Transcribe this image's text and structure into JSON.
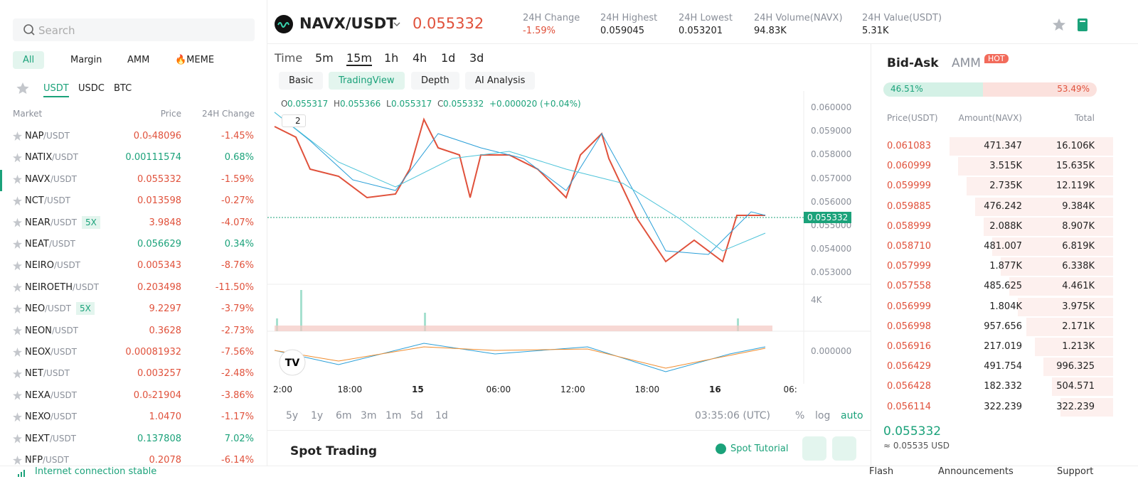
{
  "sidebar": {
    "search": "Search",
    "tabs": [
      "All",
      "Margin",
      "AMM",
      "🔥MEME"
    ],
    "quotes": [
      "USDT",
      "USDC",
      "BTC"
    ],
    "columns": [
      "Market",
      "Price",
      "24H Change"
    ],
    "markets": [
      {
        "base": "NAP",
        "quote": "/USDT",
        "price": "0.0₅48096",
        "change": "-1.45%"
      },
      {
        "base": "NATIX",
        "quote": "/USDT",
        "price": "0.00111574",
        "change": "0.68%"
      },
      {
        "base": "NAVX",
        "quote": "/USDT",
        "price": "0.055332",
        "change": "-1.59%"
      },
      {
        "base": "NCT",
        "quote": "/USDT",
        "price": "0.013598",
        "change": "-0.27%"
      },
      {
        "base": "NEAR",
        "quote": "/USDT",
        "badge": "5X",
        "price": "3.9848",
        "change": "-4.07%"
      },
      {
        "base": "NEAT",
        "quote": "/USDT",
        "price": "0.056629",
        "change": "0.34%"
      },
      {
        "base": "NEIRO",
        "quote": "/USDT",
        "price": "0.005343",
        "change": "-8.76%"
      },
      {
        "base": "NEIROETH",
        "quote": "/USDT",
        "price": "0.203498",
        "change": "-11.50%"
      },
      {
        "base": "NEO",
        "quote": "/USDT",
        "badge": "5X",
        "price": "9.2297",
        "change": "-3.79%"
      },
      {
        "base": "NEON",
        "quote": "/USDT",
        "price": "0.3628",
        "change": "-2.73%"
      },
      {
        "base": "NEOX",
        "quote": "/USDT",
        "price": "0.00081932",
        "change": "-7.56%"
      },
      {
        "base": "NET",
        "quote": "/USDT",
        "price": "0.003257",
        "change": "-2.48%"
      },
      {
        "base": "NEXA",
        "quote": "/USDT",
        "price": "0.0₅21904",
        "change": "-3.86%"
      },
      {
        "base": "NEXO",
        "quote": "/USDT",
        "price": "1.0470",
        "change": "-1.17%"
      },
      {
        "base": "NEXT",
        "quote": "/USDT",
        "price": "0.137808",
        "change": "7.02%"
      },
      {
        "base": "NFP",
        "quote": "/USDT",
        "price": "0.2078",
        "change": "-6.14%"
      }
    ]
  },
  "header": {
    "pair": "NAVX/USDT",
    "price": "0.055332",
    "stats": [
      {
        "label": "24H Change",
        "value": "-1.59%"
      },
      {
        "label": "24H Highest",
        "value": "0.059045"
      },
      {
        "label": "24H Lowest",
        "value": "0.053201"
      },
      {
        "label": "24H Volume(NAVX)",
        "value": "94.83K"
      },
      {
        "label": "24H Value(USDT)",
        "value": "5.31K"
      }
    ]
  },
  "chart": {
    "intervals": [
      "Time",
      "5m",
      "15m",
      "1h",
      "4h",
      "1d",
      "3d"
    ],
    "views": [
      "Basic",
      "TradingView",
      "Depth",
      "AI Analysis"
    ],
    "ohlc": [
      {
        "key": "O",
        "value": "0.055317"
      },
      {
        "key": "H",
        "value": "0.055366"
      },
      {
        "key": "L",
        "value": "0.055317"
      },
      {
        "key": "C",
        "value": "0.055332"
      }
    ],
    "change": "+0.000020 (+0.04%)",
    "indicator_count": "2",
    "price_axis": [
      "0.060000",
      "0.059000",
      "0.058000",
      "0.057000",
      "0.056000",
      "0.055000",
      "0.054000",
      "0.053000"
    ],
    "last_price": "0.055332",
    "volume_axis": "4K",
    "macd_axis": "0.000000",
    "time_axis": [
      "2:00",
      "18:00",
      "15",
      "06:00",
      "12:00",
      "18:00",
      "16",
      "06:"
    ],
    "ranges": [
      "5y",
      "1y",
      "6m",
      "3m",
      "1m",
      "5d",
      "1d"
    ],
    "clock": "03:35:06 (UTC)",
    "scales": [
      "%",
      "log",
      "auto"
    ]
  },
  "spot": {
    "title": "Spot Trading",
    "tutorial": "Spot Tutorial"
  },
  "orderbook": {
    "tabs": [
      "Bid-Ask",
      "AMM"
    ],
    "hot": "HOT",
    "bid_ratio": "46.51%",
    "ask_ratio": "53.49%",
    "columns": [
      "Price(USDT)",
      "Amount(NAVX)",
      "Total"
    ],
    "asks": [
      [
        "0.061083",
        "471.347",
        "16.106K"
      ],
      [
        "0.060999",
        "3.515K",
        "15.635K"
      ],
      [
        "0.059999",
        "2.735K",
        "12.119K"
      ],
      [
        "0.059885",
        "476.242",
        "9.384K"
      ],
      [
        "0.058999",
        "2.088K",
        "8.907K"
      ],
      [
        "0.058710",
        "481.007",
        "6.819K"
      ],
      [
        "0.057999",
        "1.877K",
        "6.338K"
      ],
      [
        "0.057558",
        "485.625",
        "4.461K"
      ],
      [
        "0.056999",
        "1.804K",
        "3.975K"
      ],
      [
        "0.056998",
        "957.656",
        "2.171K"
      ],
      [
        "0.056916",
        "217.019",
        "1.213K"
      ],
      [
        "0.056429",
        "491.754",
        "996.325"
      ],
      [
        "0.056428",
        "182.332",
        "504.571"
      ],
      [
        "0.056114",
        "322.239",
        "322.239"
      ]
    ],
    "last": "0.055332",
    "last_usd": "≈ 0.05535 USD"
  },
  "footer": {
    "status": "Internet connection stable",
    "links": [
      "Flash",
      "Announcements",
      "Support"
    ]
  }
}
